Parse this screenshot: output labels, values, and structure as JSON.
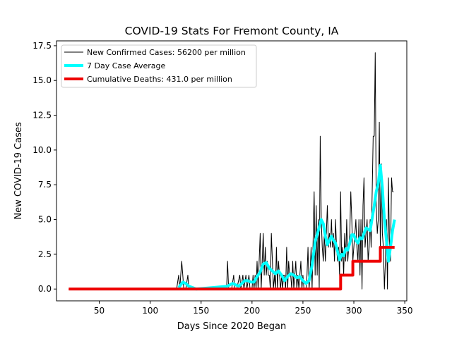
{
  "chart_data": {
    "type": "line",
    "title": "COVID-19 Stats For Fremont County, IA",
    "xlabel": "Days Since 2020 Began",
    "ylabel": "New COVID-19 Cases",
    "xlim": [
      8,
      352
    ],
    "ylim": [
      -0.85,
      17.85
    ],
    "x_ticks": [
      50,
      100,
      150,
      200,
      250,
      300,
      350
    ],
    "x_tick_labels": [
      "50",
      "100",
      "150",
      "200",
      "250",
      "300",
      "350"
    ],
    "y_ticks": [
      0,
      2.5,
      5,
      7.5,
      10,
      12.5,
      15,
      17.5
    ],
    "y_tick_labels": [
      "0.0",
      "2.5",
      "5.0",
      "7.5",
      "10.0",
      "12.5",
      "15.0",
      "17.5"
    ],
    "grid": false,
    "legend_position": "top-left",
    "series": [
      {
        "name": "New Confirmed Cases: 56200 per million",
        "color": "#000000",
        "style": "thin",
        "points": [
          [
            20,
            0
          ],
          [
            126,
            0
          ],
          [
            128,
            1
          ],
          [
            129,
            0
          ],
          [
            131,
            2
          ],
          [
            132,
            1
          ],
          [
            133,
            0
          ],
          [
            135,
            0
          ],
          [
            137,
            1
          ],
          [
            138,
            0
          ],
          [
            142,
            0
          ],
          [
            145,
            0
          ],
          [
            175,
            0
          ],
          [
            176,
            2
          ],
          [
            177,
            0
          ],
          [
            180,
            0
          ],
          [
            182,
            1
          ],
          [
            183,
            0
          ],
          [
            185,
            0
          ],
          [
            188,
            1
          ],
          [
            189,
            0
          ],
          [
            191,
            1
          ],
          [
            192,
            0
          ],
          [
            194,
            1
          ],
          [
            195,
            0
          ],
          [
            197,
            1
          ],
          [
            198,
            0
          ],
          [
            200,
            0
          ],
          [
            201,
            1
          ],
          [
            202,
            0
          ],
          [
            203,
            1
          ],
          [
            204,
            0
          ],
          [
            205,
            2
          ],
          [
            206,
            0
          ],
          [
            208,
            4
          ],
          [
            209,
            0
          ],
          [
            210,
            2
          ],
          [
            211,
            4
          ],
          [
            212,
            1
          ],
          [
            213,
            3
          ],
          [
            214,
            1
          ],
          [
            215,
            2
          ],
          [
            216,
            1
          ],
          [
            217,
            1
          ],
          [
            218,
            0
          ],
          [
            219,
            4
          ],
          [
            220,
            2
          ],
          [
            221,
            0
          ],
          [
            222,
            1
          ],
          [
            223,
            0
          ],
          [
            224,
            3
          ],
          [
            225,
            0
          ],
          [
            226,
            2
          ],
          [
            227,
            1
          ],
          [
            228,
            0
          ],
          [
            229,
            1
          ],
          [
            230,
            0
          ],
          [
            231,
            1
          ],
          [
            232,
            1
          ],
          [
            233,
            0
          ],
          [
            234,
            3
          ],
          [
            235,
            0
          ],
          [
            236,
            2
          ],
          [
            237,
            1
          ],
          [
            238,
            1
          ],
          [
            239,
            0
          ],
          [
            240,
            2
          ],
          [
            241,
            0
          ],
          [
            242,
            1
          ],
          [
            243,
            2
          ],
          [
            244,
            0
          ],
          [
            245,
            1
          ],
          [
            246,
            0
          ],
          [
            247,
            1
          ],
          [
            248,
            2
          ],
          [
            249,
            0
          ],
          [
            250,
            1
          ],
          [
            251,
            0
          ],
          [
            252,
            0
          ],
          [
            253,
            0
          ],
          [
            254,
            1
          ],
          [
            255,
            3
          ],
          [
            256,
            0
          ],
          [
            257,
            1
          ],
          [
            258,
            3
          ],
          [
            259,
            0
          ],
          [
            261,
            7
          ],
          [
            262,
            1
          ],
          [
            263,
            6
          ],
          [
            264,
            1
          ],
          [
            265,
            5
          ],
          [
            266,
            0
          ],
          [
            267,
            11
          ],
          [
            268,
            5
          ],
          [
            269,
            3
          ],
          [
            270,
            2
          ],
          [
            271,
            4
          ],
          [
            272,
            2
          ],
          [
            273,
            4
          ],
          [
            274,
            6
          ],
          [
            275,
            3
          ],
          [
            276,
            4
          ],
          [
            277,
            3
          ],
          [
            278,
            5
          ],
          [
            279,
            3
          ],
          [
            280,
            4
          ],
          [
            281,
            2
          ],
          [
            282,
            5
          ],
          [
            283,
            3
          ],
          [
            284,
            2
          ],
          [
            285,
            3
          ],
          [
            286,
            1
          ],
          [
            287,
            7
          ],
          [
            288,
            2
          ],
          [
            289,
            3
          ],
          [
            290,
            1
          ],
          [
            291,
            4
          ],
          [
            292,
            2
          ],
          [
            293,
            5
          ],
          [
            294,
            2
          ],
          [
            295,
            3
          ],
          [
            296,
            4
          ],
          [
            297,
            7
          ],
          [
            298,
            5
          ],
          [
            299,
            2
          ],
          [
            300,
            3
          ],
          [
            301,
            4
          ],
          [
            302,
            5
          ],
          [
            303,
            3
          ],
          [
            304,
            2
          ],
          [
            305,
            5
          ],
          [
            306,
            1
          ],
          [
            307,
            5
          ],
          [
            308,
            0
          ],
          [
            309,
            6
          ],
          [
            310,
            8
          ],
          [
            311,
            3
          ],
          [
            312,
            4
          ],
          [
            313,
            5
          ],
          [
            314,
            2
          ],
          [
            315,
            3
          ],
          [
            316,
            5
          ],
          [
            317,
            3
          ],
          [
            318,
            7
          ],
          [
            319,
            11
          ],
          [
            320,
            11
          ],
          [
            321,
            17
          ],
          [
            322,
            6
          ],
          [
            323,
            4
          ],
          [
            324,
            5
          ],
          [
            325,
            12
          ],
          [
            326,
            3
          ],
          [
            327,
            9
          ],
          [
            328,
            4
          ],
          [
            329,
            3
          ],
          [
            330,
            0
          ],
          [
            331,
            2
          ],
          [
            332,
            5
          ],
          [
            333,
            0
          ],
          [
            334,
            8
          ],
          [
            335,
            3
          ],
          [
            336,
            2
          ],
          [
            337,
            8
          ],
          [
            338,
            7
          ],
          [
            339,
            7
          ]
        ]
      },
      {
        "name": "7 Day Case Average",
        "color": "#00ffff",
        "style": "thick",
        "points": [
          [
            128,
            0.1
          ],
          [
            130,
            0.3
          ],
          [
            132,
            0.5
          ],
          [
            135,
            0.4
          ],
          [
            138,
            0.2
          ],
          [
            142,
            0.1
          ],
          [
            145,
            0.0
          ],
          [
            176,
            0.2
          ],
          [
            178,
            0.3
          ],
          [
            181,
            0.4
          ],
          [
            184,
            0.3
          ],
          [
            187,
            0.2
          ],
          [
            190,
            0.4
          ],
          [
            193,
            0.6
          ],
          [
            196,
            0.6
          ],
          [
            199,
            0.5
          ],
          [
            202,
            0.5
          ],
          [
            205,
            0.9
          ],
          [
            208,
            1.2
          ],
          [
            211,
            1.8
          ],
          [
            214,
            1.9
          ],
          [
            217,
            1.5
          ],
          [
            220,
            1.3
          ],
          [
            223,
            1.1
          ],
          [
            226,
            1.3
          ],
          [
            229,
            1.0
          ],
          [
            232,
            0.6
          ],
          [
            235,
            0.9
          ],
          [
            238,
            1.1
          ],
          [
            241,
            1.0
          ],
          [
            244,
            0.8
          ],
          [
            247,
            0.9
          ],
          [
            250,
            0.6
          ],
          [
            253,
            0.4
          ],
          [
            256,
            0.6
          ],
          [
            259,
            1.7
          ],
          [
            262,
            3.4
          ],
          [
            265,
            4.2
          ],
          [
            268,
            5.0
          ],
          [
            270,
            4.7
          ],
          [
            272,
            3.8
          ],
          [
            274,
            3.2
          ],
          [
            276,
            3.5
          ],
          [
            278,
            3.8
          ],
          [
            280,
            3.5
          ],
          [
            282,
            3.3
          ],
          [
            284,
            2.7
          ],
          [
            286,
            2.1
          ],
          [
            288,
            2.5
          ],
          [
            290,
            2.4
          ],
          [
            292,
            2.9
          ],
          [
            294,
            2.8
          ],
          [
            296,
            3.3
          ],
          [
            298,
            3.9
          ],
          [
            300,
            3.9
          ],
          [
            302,
            3.5
          ],
          [
            304,
            3.3
          ],
          [
            306,
            3.7
          ],
          [
            308,
            3.6
          ],
          [
            310,
            4.0
          ],
          [
            312,
            4.4
          ],
          [
            314,
            4.3
          ],
          [
            316,
            4.2
          ],
          [
            318,
            5.1
          ],
          [
            320,
            6.0
          ],
          [
            322,
            7.0
          ],
          [
            324,
            7.6
          ],
          [
            326,
            8.9
          ],
          [
            328,
            7.3
          ],
          [
            330,
            5.0
          ],
          [
            332,
            3.5
          ],
          [
            334,
            2.0
          ],
          [
            336,
            3.0
          ],
          [
            338,
            4.2
          ],
          [
            340,
            5.0
          ]
        ]
      },
      {
        "name": "Cumulative Deaths: 431.0 per million",
        "color": "#ee0000",
        "style": "thick",
        "points": [
          [
            20,
            0
          ],
          [
            287,
            0
          ],
          [
            287,
            1
          ],
          [
            299,
            1
          ],
          [
            299,
            2
          ],
          [
            326,
            2
          ],
          [
            326,
            3
          ],
          [
            340,
            3
          ]
        ]
      }
    ]
  }
}
